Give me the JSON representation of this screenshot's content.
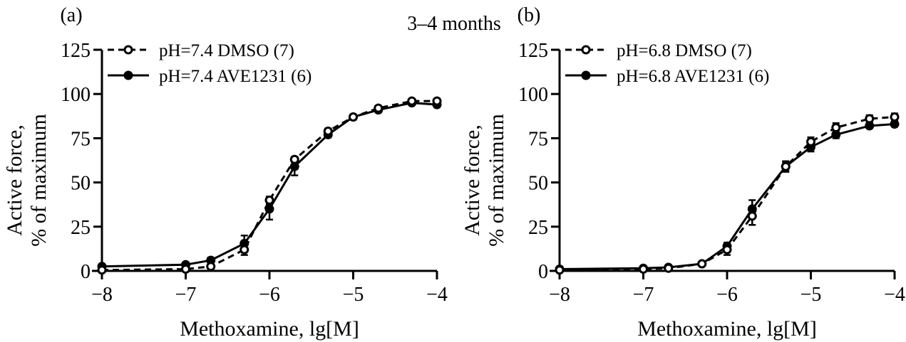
{
  "figure": {
    "title": "3–4 months"
  },
  "chart_data": [
    {
      "type": "line",
      "panel_label": "(a)",
      "xlabel": "Methoxamine, lg[M]",
      "ylabel_line1": "Active force,",
      "ylabel_line2": "% of maximum",
      "xlim": [
        -8,
        -4
      ],
      "ylim": [
        0,
        125
      ],
      "xticks": [
        "−8",
        "−7",
        "−6",
        "−5",
        "−4"
      ],
      "yticks": [
        "0",
        "25",
        "50",
        "75",
        "100",
        "125"
      ],
      "grid": false,
      "legend_position": "top-left",
      "x": [
        -8,
        -7,
        -6.7,
        -6.3,
        -6,
        -5.7,
        -5.3,
        -5,
        -4.7,
        -4.3,
        -4
      ],
      "series": [
        {
          "name": "pH=7.4 DMSO (7)",
          "style": "dashed",
          "marker": "open-circle",
          "values": [
            0.5,
            1,
            2.5,
            12,
            40,
            63,
            79,
            87,
            92,
            96,
            96
          ],
          "error": [
            0.5,
            0.5,
            1,
            3,
            2,
            1.5,
            1.5,
            1.5,
            1,
            1,
            1
          ]
        },
        {
          "name": "pH=7.4 AVE1231 (6)",
          "style": "solid",
          "marker": "filled-circle",
          "values": [
            2.5,
            3.5,
            6,
            15.5,
            35,
            59,
            77,
            87,
            91,
            95,
            94
          ],
          "error": [
            0.5,
            0.5,
            1.5,
            4.5,
            6,
            5,
            1.5,
            1.5,
            1,
            1,
            1
          ]
        }
      ]
    },
    {
      "type": "line",
      "panel_label": "(b)",
      "xlabel": "Methoxamine, lg[M]",
      "ylabel_line1": "Active force,",
      "ylabel_line2": "% of maximum",
      "xlim": [
        -8,
        -4
      ],
      "ylim": [
        0,
        125
      ],
      "xticks": [
        "−8",
        "−7",
        "−6",
        "−5",
        "−4"
      ],
      "yticks": [
        "0",
        "25",
        "50",
        "75",
        "100",
        "125"
      ],
      "grid": false,
      "legend_position": "top-left",
      "x": [
        -8,
        -7,
        -6.7,
        -6.3,
        -6,
        -5.7,
        -5.3,
        -5,
        -4.7,
        -4.3,
        -4
      ],
      "series": [
        {
          "name": "pH=6.8 DMSO (7)",
          "style": "dashed",
          "marker": "open-circle",
          "values": [
            0.5,
            1,
            1.5,
            4,
            12,
            31,
            59,
            73,
            81,
            86,
            87
          ],
          "error": [
            0.5,
            0.5,
            0.5,
            1,
            3,
            5,
            2.5,
            2.5,
            2.5,
            2,
            2
          ]
        },
        {
          "name": "pH=6.8 AVE1231 (6)",
          "style": "solid",
          "marker": "filled-circle",
          "values": [
            1,
            1.5,
            2,
            4,
            14,
            35,
            59,
            70,
            77,
            82,
            83
          ],
          "error": [
            0.5,
            0.5,
            0.5,
            1,
            2,
            5,
            3,
            2.5,
            2,
            1,
            1
          ]
        }
      ]
    }
  ]
}
